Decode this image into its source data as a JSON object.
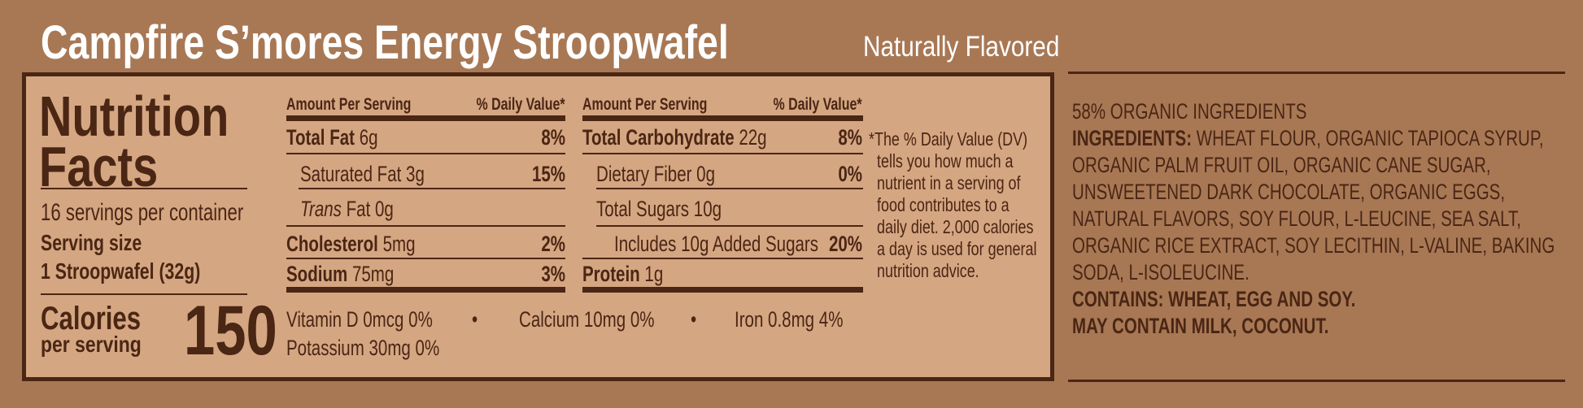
{
  "header": {
    "title": "Campfire S’mores Energy Stroopwafel",
    "subtitle": "Naturally Flavored"
  },
  "facts": {
    "heading_1": "Nutrition",
    "heading_2": "Facts",
    "servings": "16 servings per container",
    "serving_size_label": "Serving size",
    "serving_size": "1 Stroopwafel (32g)",
    "calories_label": "Calories",
    "calories_sub": "per serving",
    "calories": "150",
    "col_header_amount": "Amount Per Serving",
    "col_header_dv": "% Daily Value*",
    "left": [
      {
        "name": "Total Fat",
        "amount": "6g",
        "dv": "8%"
      },
      {
        "name": "Saturated Fat",
        "amount": "3g",
        "dv": "15%"
      },
      {
        "name": "Trans",
        "name2": "Fat",
        "amount": "0g",
        "dv": ""
      },
      {
        "name": "Cholesterol",
        "amount": "5mg",
        "dv": "2%"
      },
      {
        "name": "Sodium",
        "amount": "75mg",
        "dv": "3%"
      }
    ],
    "right": [
      {
        "name": "Total Carbohydrate",
        "amount": "22g",
        "dv": "8%"
      },
      {
        "name": "Dietary Fiber",
        "amount": "0g",
        "dv": "0%"
      },
      {
        "name": "Total Sugars",
        "amount": "10g",
        "dv": ""
      },
      {
        "name": "Includes 10g Added Sugars",
        "amount": "",
        "dv": "20%"
      },
      {
        "name": "Protein",
        "amount": "1g",
        "dv": ""
      }
    ],
    "micros": {
      "vitamin_d": "Vitamin D 0mcg 0%",
      "calcium": "Calcium 10mg 0%",
      "iron": "Iron 0.8mg 4%",
      "potassium": "Potassium 30mg 0%",
      "bullet": "•"
    },
    "footnote": [
      "*The % Daily Value (DV)",
      "tells you how much a",
      "nutrient in a serving of",
      "food contributes to a",
      "daily diet. 2,000 calories",
      "a day is used for general",
      "nutrition advice."
    ]
  },
  "ingredients": {
    "organic": "58% ORGANIC INGREDIENTS",
    "label": "INGREDIENTS:",
    "lines": [
      " WHEAT FLOUR, ORGANIC TAPIOCA SYRUP,",
      "ORGANIC PALM FRUIT OIL, ORGANIC CANE SUGAR,",
      "UNSWEETENED DARK CHOCOLATE, ORGANIC EGGS,",
      "NATURAL FLAVORS, SOY FLOUR, L-LEUCINE, SEA SALT,",
      "ORGANIC RICE EXTRACT, SOY LECITHIN, L-VALINE, BAKING",
      "SODA, L-ISOLEUCINE."
    ],
    "contains": "CONTAINS: WHEAT, EGG AND SOY.",
    "may_contain": "MAY CONTAIN MILK, COCONUT."
  },
  "colors": {
    "background": "#a87855",
    "panel": "#d5a682",
    "text": "#4a2614",
    "title": "#ffffff"
  }
}
